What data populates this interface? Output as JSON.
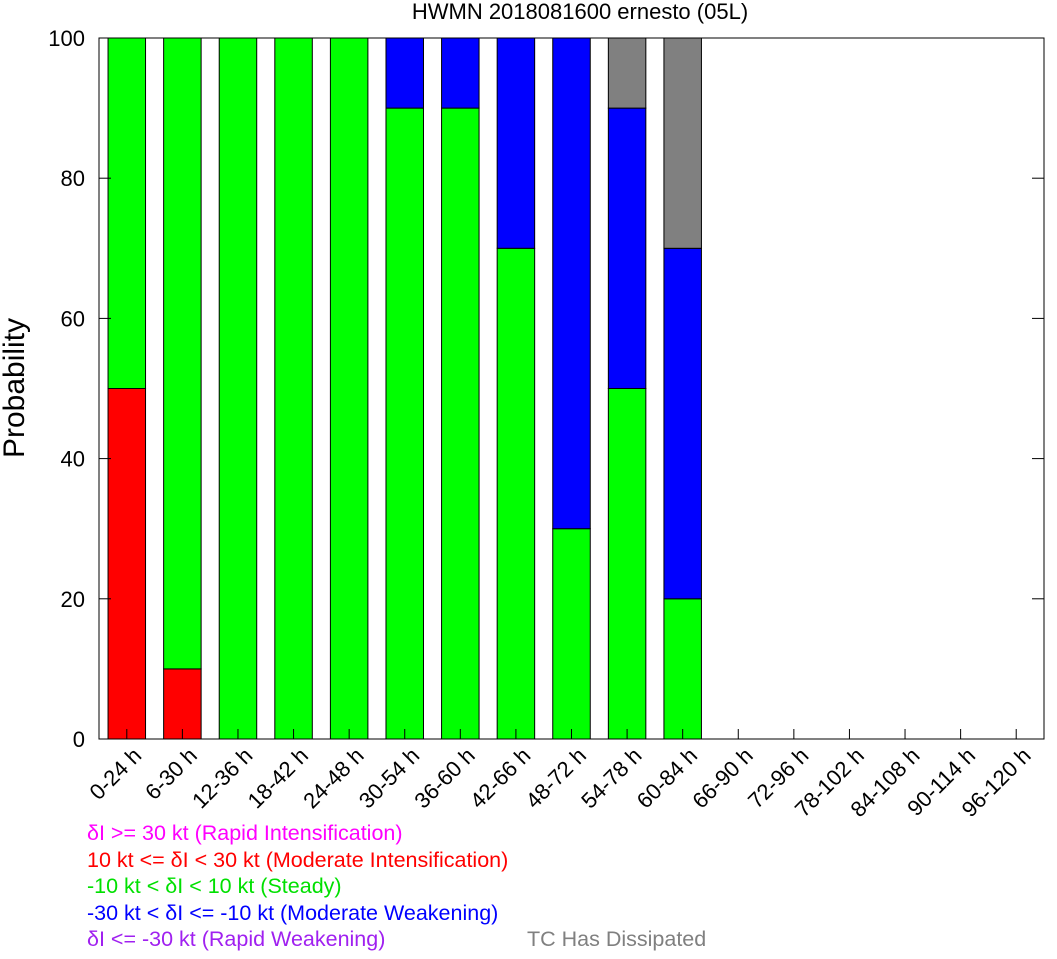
{
  "chart_data": {
    "type": "bar",
    "stacked": true,
    "title": "HWMN 2018081600 ernesto (05L)",
    "xlabel": "",
    "ylabel": "Probability",
    "ylim": [
      0,
      100
    ],
    "yticks": [
      0,
      20,
      40,
      60,
      80,
      100
    ],
    "grid": false,
    "categories": [
      "0-24 h",
      "6-30 h",
      "12-36 h",
      "18-42 h",
      "24-48 h",
      "30-54 h",
      "36-60 h",
      "42-66 h",
      "48-72 h",
      "54-78 h",
      "60-84 h",
      "66-90 h",
      "72-96 h",
      "78-102 h",
      "84-108 h",
      "90-114 h",
      "96-120 h"
    ],
    "series": [
      {
        "name": "δI >= 30 kt (Rapid Intensification)",
        "color": "#ff00ff",
        "values": [
          0,
          0,
          0,
          0,
          0,
          0,
          0,
          0,
          0,
          0,
          0,
          0,
          0,
          0,
          0,
          0,
          0
        ]
      },
      {
        "name": "10 kt <= δI < 30 kt (Moderate Intensification)",
        "color": "#ff0000",
        "values": [
          50,
          10,
          0,
          0,
          0,
          0,
          0,
          0,
          0,
          0,
          0,
          0,
          0,
          0,
          0,
          0,
          0
        ]
      },
      {
        "name": "-10 kt < δI < 10 kt (Steady)",
        "color": "#00ff00",
        "values": [
          50,
          90,
          100,
          100,
          100,
          90,
          90,
          70,
          30,
          50,
          20,
          0,
          0,
          0,
          0,
          0,
          0
        ]
      },
      {
        "name": "-30 kt < δI <= -10 kt (Moderate Weakening)",
        "color": "#0000ff",
        "values": [
          0,
          0,
          0,
          0,
          0,
          10,
          10,
          30,
          70,
          40,
          50,
          0,
          0,
          0,
          0,
          0,
          0
        ]
      },
      {
        "name": "δI <= -30 kt (Rapid Weakening)",
        "color": "#a020f0",
        "values": [
          0,
          0,
          0,
          0,
          0,
          0,
          0,
          0,
          0,
          0,
          0,
          0,
          0,
          0,
          0,
          0,
          0
        ]
      },
      {
        "name": "TC Has Dissipated",
        "color": "#808080",
        "values": [
          0,
          0,
          0,
          0,
          0,
          0,
          0,
          0,
          0,
          10,
          30,
          0,
          0,
          0,
          0,
          0,
          0
        ]
      }
    ]
  },
  "legend": {
    "ri": "δI >= 30 kt (Rapid Intensification)",
    "mi": "10 kt <= δI < 30 kt (Moderate Intensification)",
    "steady": "-10 kt < δI < 10 kt (Steady)",
    "mw": "-30 kt < δI <= -10 kt (Moderate Weakening)",
    "rw": "δI <= -30 kt (Rapid Weakening)",
    "dissipated": "TC Has Dissipated"
  },
  "colors": {
    "ri": "#ff00ff",
    "mi": "#ff0000",
    "steady": "#00ff00",
    "mw": "#0000ff",
    "rw": "#a020f0",
    "dissipated": "#808080"
  }
}
